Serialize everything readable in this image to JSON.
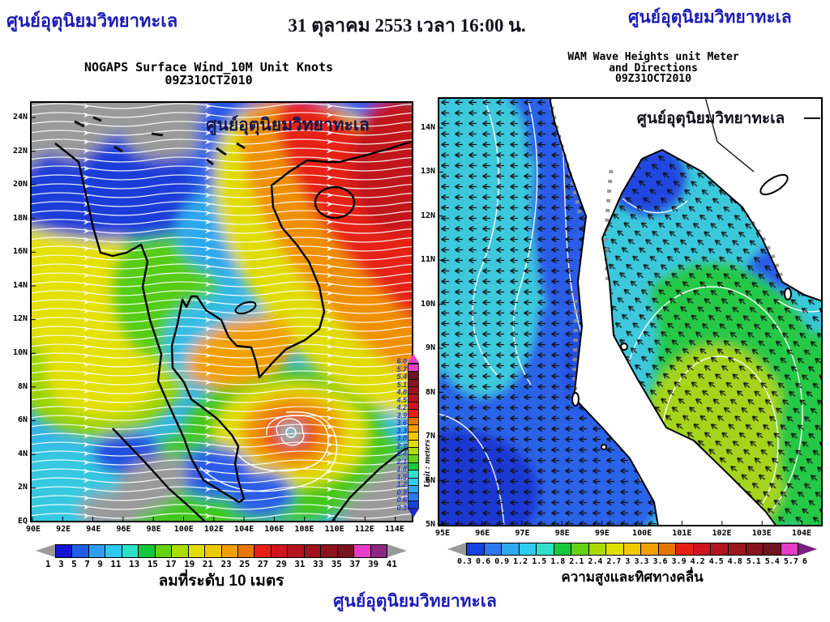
{
  "header": {
    "agency_name_left": "ศูนย์อุตุนิยมวิทยาทะเล",
    "datetime": "31 ตุลาคม 2553 เวลา 16:00 น.",
    "agency_name_right": "ศูนย์อุตุนิยมวิทยาทะเล"
  },
  "footer": {
    "agency_name": "ศูนย์อุตุนิยมวิทยาทะเล"
  },
  "wind_map": {
    "title": "NOGAPS Surface Wind_10M Unit Knots",
    "run_label": "09Z31OCT2010",
    "watermark": "ศูนย์อุตุนิยมวิทยาทะเล",
    "caption": "ลมที่ระดับ 10 เมตร",
    "lat_ticks": [
      "24N",
      "22N",
      "20N",
      "18N",
      "16N",
      "14N",
      "12N",
      "10N",
      "8N",
      "6N",
      "4N",
      "2N",
      "EQ"
    ],
    "lon_ticks": [
      "90E",
      "92E",
      "94E",
      "96E",
      "98E",
      "100E",
      "102E",
      "104E",
      "106E",
      "108E",
      "110E",
      "112E",
      "114E"
    ],
    "colorbar": {
      "labels": [
        "1",
        "3",
        "5",
        "7",
        "9",
        "11",
        "13",
        "15",
        "17",
        "19",
        "21",
        "23",
        "25",
        "27",
        "29",
        "31",
        "33",
        "35",
        "37",
        "39",
        "41"
      ],
      "colors": [
        "#1414d2",
        "#1e5fe8",
        "#2e9ff0",
        "#2ec8f0",
        "#2ee0c8",
        "#14c83c",
        "#64d214",
        "#aadc00",
        "#e0e000",
        "#f0c800",
        "#f0a000",
        "#e67800",
        "#e61e14",
        "#d0141e",
        "#b4141e",
        "#a0141e",
        "#8c141e",
        "#78141e",
        "#e63cc8",
        "#8c2882"
      ],
      "end_arrow_color": "#9a9a9a"
    }
  },
  "wave_map": {
    "title": "WAM Wave Heights unit Meter",
    "subtitle": "and Directions",
    "run_label": "09Z31OCT2010",
    "watermark": "ศูนย์อุตุนิยมวิทยาทะเล",
    "caption": "ความสูงและทิศทางคลื่น",
    "lat_ticks": [
      "14N",
      "13N",
      "12N",
      "11N",
      "10N",
      "9N",
      "8N",
      "7N",
      "6N",
      "5N"
    ],
    "lon_ticks": [
      "95E",
      "96E",
      "97E",
      "98E",
      "99E",
      "100E",
      "101E",
      "102E",
      "103E",
      "104E"
    ],
    "colorbar": {
      "labels": [
        "0.3",
        "0.6",
        "0.9",
        "1.2",
        "1.5",
        "1.8",
        "2.1",
        "2.4",
        "2.7",
        "3",
        "3.3",
        "3.6",
        "3.9",
        "4.2",
        "4.5",
        "4.8",
        "5.1",
        "5.4",
        "5.7",
        "6"
      ],
      "colors": [
        "#1441e0",
        "#2e78ee",
        "#30a8f0",
        "#30ccf0",
        "#2ee0c8",
        "#16c83c",
        "#66d214",
        "#aadc00",
        "#e0e000",
        "#f0c800",
        "#f0a000",
        "#e67800",
        "#e62014",
        "#d0141e",
        "#b4141e",
        "#9c141e",
        "#86141e",
        "#6e141e",
        "#e63cc8"
      ],
      "low_arrow_color": "#9a9a9a",
      "high_arrow_color": "#7a2080"
    },
    "side_scale": {
      "unit_label": "Unit : meters",
      "labels": [
        "6.0",
        "5.7",
        "5.4",
        "5.1",
        "4.8",
        "4.5",
        "4.2",
        "3.9",
        "3.6",
        "3.3",
        "3.0",
        "2.7",
        "2.4",
        "2.1",
        "1.8",
        "1.5",
        "1.2",
        "0.9",
        "0.6",
        "0.3"
      ]
    }
  }
}
